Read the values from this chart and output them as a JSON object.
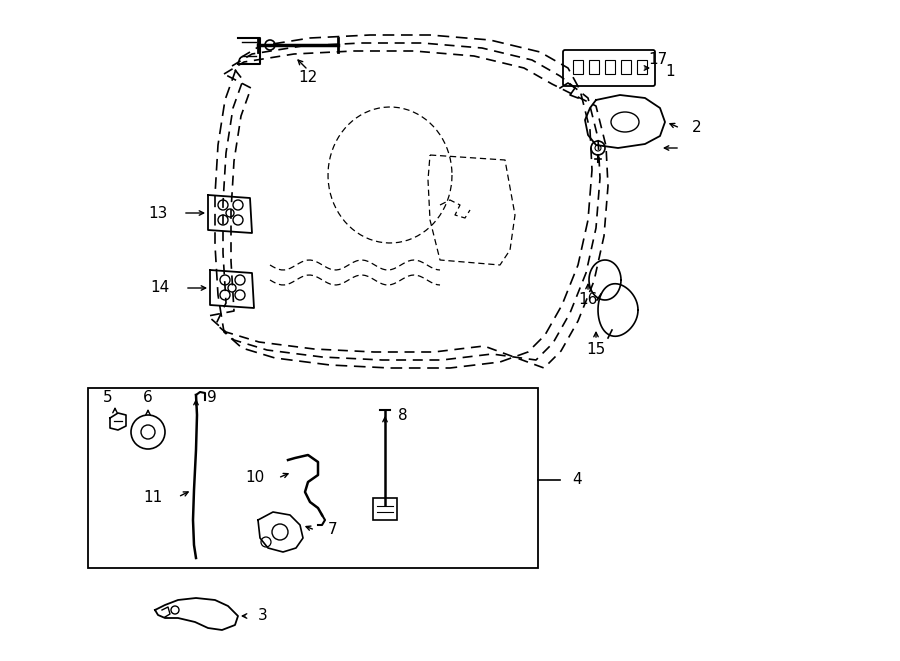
{
  "bg_color": "#ffffff",
  "line_color": "#000000",
  "fig_width": 9.0,
  "fig_height": 6.61,
  "dpi": 100,
  "font_size": 11,
  "bold_font_size": 12
}
